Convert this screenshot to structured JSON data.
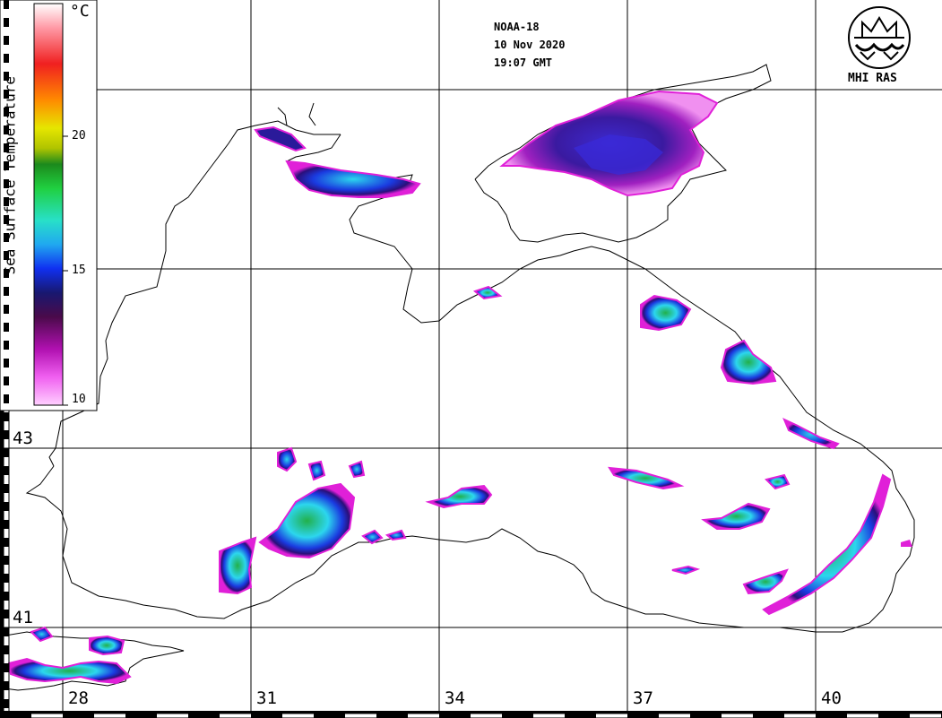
{
  "header": {
    "satellite": "NOAA-18",
    "date": "10 Nov 2020",
    "time": "19:07 GMT"
  },
  "logo": {
    "text": "MHI RAS"
  },
  "colorbar": {
    "title": "Sea Surface Temperature",
    "unit": "°C",
    "ticks": [
      "20",
      "15",
      "10"
    ],
    "range": [
      10,
      25
    ]
  },
  "axes": {
    "longitude_labels": [
      "28",
      "31",
      "34",
      "37",
      "40"
    ],
    "latitude_labels": [
      "43",
      "41"
    ]
  },
  "colors": {
    "coast": "#000000",
    "grid": "#000000",
    "warm": "#22b04a",
    "mid": "#2cd6ee",
    "cool": "#1a1fd0",
    "coldest": "#8a0a8a",
    "edge": "#e020d8"
  }
}
